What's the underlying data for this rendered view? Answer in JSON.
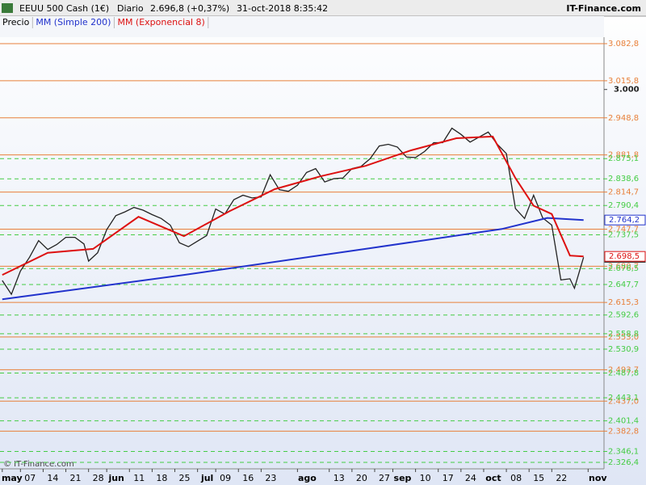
{
  "chart_data": {
    "type": "line",
    "title": "EEUU 500 Cash (1€)",
    "period": "Diario",
    "last_quote": "2.696,8 (+0,37%)",
    "timestamp": "31-oct-2018 8:35:42",
    "brand": "IT-Finance.com",
    "copyright": "© IT-Finance.com",
    "xlim": [
      -0.5,
      132.5
    ],
    "ylim": [
      2314.7,
      3094.5
    ],
    "xticks": [
      {
        "value": 0,
        "label": "may"
      },
      {
        "value": 4,
        "label": "07"
      },
      {
        "value": 9,
        "label": "14"
      },
      {
        "value": 14,
        "label": "21"
      },
      {
        "value": 19,
        "label": "28"
      },
      {
        "value": 23,
        "label": "jun"
      },
      {
        "value": 28,
        "label": "11"
      },
      {
        "value": 33,
        "label": "18"
      },
      {
        "value": 38,
        "label": "25"
      },
      {
        "value": 43,
        "label": "jul"
      },
      {
        "value": 47,
        "label": "09"
      },
      {
        "value": 52,
        "label": "16"
      },
      {
        "value": 57,
        "label": "23"
      },
      {
        "value": 65,
        "label": "ago"
      },
      {
        "value": 72,
        "label": "13"
      },
      {
        "value": 77,
        "label": "20"
      },
      {
        "value": 82,
        "label": "27"
      },
      {
        "value": 86,
        "label": "sep"
      },
      {
        "value": 91,
        "label": "10"
      },
      {
        "value": 96,
        "label": "17"
      },
      {
        "value": 101,
        "label": "24"
      },
      {
        "value": 106,
        "label": "oct"
      },
      {
        "value": 111,
        "label": "08"
      },
      {
        "value": 116,
        "label": "15"
      },
      {
        "value": 121,
        "label": "22"
      },
      {
        "value": 129,
        "label": "nov"
      }
    ],
    "yticks": [
      {
        "value": 3000,
        "label": "3.000"
      }
    ],
    "resistances": [
      {
        "value": 3082.8,
        "label": "3.082,8"
      },
      {
        "value": 3015.8,
        "label": "3.015,8"
      },
      {
        "value": 2948.8,
        "label": "2.948,8"
      },
      {
        "value": 2881.8,
        "label": "2.881,8"
      },
      {
        "value": 2814.7,
        "label": "2.814,7"
      },
      {
        "value": 2747.7,
        "label": "2.747,7"
      },
      {
        "value": 2680.7,
        "label": "2.680,7"
      },
      {
        "value": 2615.3,
        "label": "2.615,3"
      },
      {
        "value": 2553.0,
        "label": "2.553,0"
      },
      {
        "value": 2493.7,
        "label": "2.493,7"
      },
      {
        "value": 2437.0,
        "label": "2.437,0"
      },
      {
        "value": 2382.8,
        "label": "2.382,8"
      }
    ],
    "resistance_color": "#e8803a",
    "supports": [
      {
        "value": 2875.1,
        "label": "2.875,1"
      },
      {
        "value": 2838.6,
        "label": "2.838,6"
      },
      {
        "value": 2790.4,
        "label": "2.790,4"
      },
      {
        "value": 2737.5,
        "label": "2.737,5"
      },
      {
        "value": 2676.5,
        "label": "2.676,5"
      },
      {
        "value": 2647.7,
        "label": "2.647,7"
      },
      {
        "value": 2592.6,
        "label": "2.592,6"
      },
      {
        "value": 2558.8,
        "label": "2.558,8"
      },
      {
        "value": 2530.9,
        "label": "2.530,9"
      },
      {
        "value": 2487.8,
        "label": "2.487,8"
      },
      {
        "value": 2443.1,
        "label": "2.443,1"
      },
      {
        "value": 2401.4,
        "label": "2.401,4"
      },
      {
        "value": 2346.1,
        "label": "2.346,1"
      },
      {
        "value": 2326.4,
        "label": "2.326,4"
      }
    ],
    "support_color": "#44cc44",
    "series": [
      {
        "name": "Precio",
        "color": "#222222",
        "x": [
          0,
          2,
          4,
          6,
          8,
          10,
          12,
          14,
          16,
          18,
          19,
          21,
          23,
          25,
          27,
          29,
          31,
          33,
          35,
          37,
          39,
          41,
          43,
          45,
          47,
          49,
          51,
          53,
          55,
          57,
          59,
          61,
          63,
          65,
          67,
          69,
          71,
          73,
          75,
          77,
          79,
          81,
          83,
          85,
          87,
          89,
          91,
          93,
          95,
          97,
          99,
          101,
          103,
          105,
          107,
          109,
          111,
          113,
          115,
          117,
          119,
          121,
          123,
          125,
          126,
          128
        ],
        "values": [
          2655,
          2630,
          2672,
          2697,
          2727,
          2711,
          2720,
          2733,
          2733,
          2721,
          2690,
          2705,
          2747,
          2772,
          2779,
          2787,
          2782,
          2774,
          2767,
          2755,
          2723,
          2716,
          2726,
          2736,
          2784,
          2775,
          2801,
          2809,
          2804,
          2806,
          2846,
          2819,
          2816,
          2827,
          2850,
          2857,
          2833,
          2839,
          2840,
          2857,
          2861,
          2875,
          2898,
          2901,
          2896,
          2878,
          2877,
          2888,
          2904,
          2904,
          2930,
          2919,
          2905,
          2914,
          2923,
          2901,
          2884,
          2785,
          2767,
          2809,
          2768,
          2755,
          2656,
          2658,
          2641,
          2696.8
        ],
        "value_labels": {
          "65": "2.696,8"
        }
      },
      {
        "name": "MM (Simple 200)",
        "color": "#2233cc",
        "x": [
          0,
          40,
          80,
          110,
          120,
          128
        ],
        "values": [
          2621,
          2665,
          2712,
          2748,
          2768,
          2764.2
        ],
        "value_labels": {
          "5": "2.764,2"
        }
      },
      {
        "name": "MM (Exponencial 8)",
        "color": "#dd1111",
        "x": [
          0,
          10,
          20,
          30,
          40,
          50,
          60,
          70,
          80,
          90,
          100,
          108,
          113,
          117,
          121,
          125,
          128
        ],
        "values": [
          2665,
          2705,
          2712,
          2770,
          2735,
          2780,
          2820,
          2843,
          2862,
          2890,
          2912,
          2915,
          2840,
          2790,
          2775,
          2700,
          2698.5
        ],
        "value_labels": {
          "16": "2.698,5"
        }
      }
    ]
  }
}
